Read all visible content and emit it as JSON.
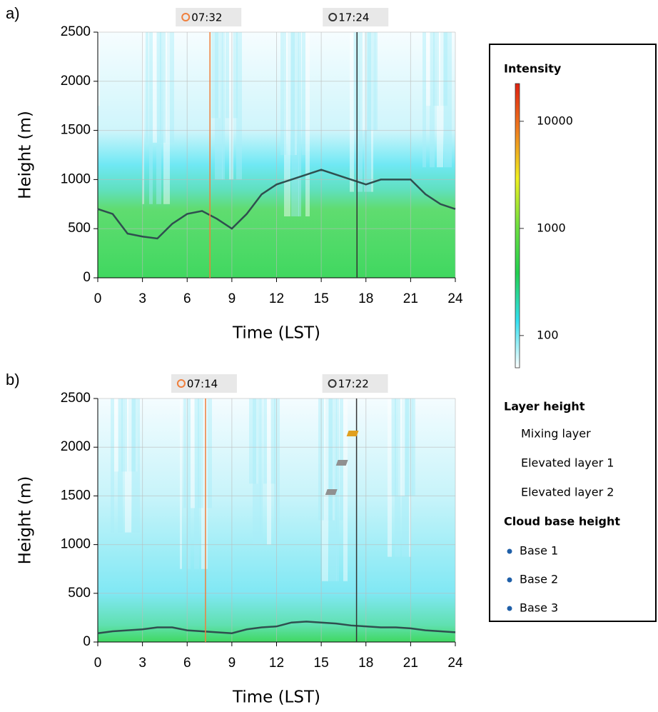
{
  "legend": {
    "colorbar": {
      "title": "Intensity",
      "log": true,
      "lim": [
        50,
        22500
      ],
      "ticks": [
        100,
        1000,
        10000
      ],
      "colors": [
        "#ffffff",
        "#33e0f0",
        "#22d050",
        "#70e040",
        "#f0f020",
        "#f08020",
        "#e02010"
      ]
    },
    "layer_title": "Layer height",
    "layers": [
      {
        "name": "Mixing layer",
        "color": "#e0a020"
      },
      {
        "name": "Elevated layer 1",
        "color": "#909090"
      },
      {
        "name": "Elevated layer 2",
        "color": "#909090"
      }
    ],
    "cloud_title": "Cloud base height",
    "bases": [
      {
        "name": "Base 1",
        "color": "#1f5fa8"
      },
      {
        "name": "Base 2",
        "color": "#1f5fa8"
      },
      {
        "name": "Base 3",
        "color": "#1f5fa8"
      }
    ]
  },
  "chart_data": [
    {
      "type": "line",
      "panel_label": "a)",
      "xlabel": "Time (LST)",
      "ylabel": "Height (m)",
      "xlim": [
        0,
        24
      ],
      "ylim": [
        0,
        2500
      ],
      "xticks": [
        0,
        3,
        6,
        9,
        12,
        15,
        18,
        21,
        24
      ],
      "yticks": [
        0,
        500,
        1000,
        1500,
        2000,
        2500
      ],
      "grid": true,
      "sunrise": {
        "x": 7.53,
        "label": "07:32",
        "color": "#f07f3c"
      },
      "sunset": {
        "x": 17.4,
        "label": "17:24",
        "color": "#333333"
      },
      "x": [
        0,
        1,
        2,
        3,
        4,
        5,
        6,
        7,
        8,
        9,
        10,
        11,
        12,
        13,
        14,
        15,
        16,
        17,
        18,
        19,
        20,
        21,
        22,
        23,
        24
      ],
      "series": [
        {
          "color": "#2f4f4f",
          "values": [
            700,
            650,
            450,
            420,
            400,
            550,
            650,
            680,
            600,
            500,
            650,
            850,
            950,
            1000,
            1050,
            1100,
            1050,
            1000,
            950,
            1000,
            1000,
            1000,
            850,
            750,
            700
          ]
        }
      ]
    },
    {
      "type": "line",
      "panel_label": "b)",
      "xlabel": "Time (LST)",
      "ylabel": "Height (m)",
      "xlim": [
        0,
        24
      ],
      "ylim": [
        0,
        2500
      ],
      "xticks": [
        0,
        3,
        6,
        9,
        12,
        15,
        18,
        21,
        24
      ],
      "yticks": [
        0,
        500,
        1000,
        1500,
        2000,
        2500
      ],
      "grid": true,
      "sunrise": {
        "x": 7.23,
        "label": "07:14",
        "color": "#f07f3c"
      },
      "sunset": {
        "x": 17.37,
        "label": "17:22",
        "color": "#333333"
      },
      "x": [
        0,
        1,
        2,
        3,
        4,
        5,
        6,
        7,
        8,
        9,
        10,
        11,
        12,
        13,
        14,
        15,
        16,
        17,
        18,
        19,
        20,
        21,
        22,
        23,
        24
      ],
      "series": [
        {
          "color": "#2f4f4f",
          "values": [
            90,
            110,
            120,
            130,
            150,
            150,
            120,
            110,
            100,
            90,
            130,
            150,
            160,
            200,
            210,
            200,
            190,
            170,
            160,
            150,
            150,
            140,
            120,
            110,
            100
          ]
        }
      ]
    }
  ]
}
